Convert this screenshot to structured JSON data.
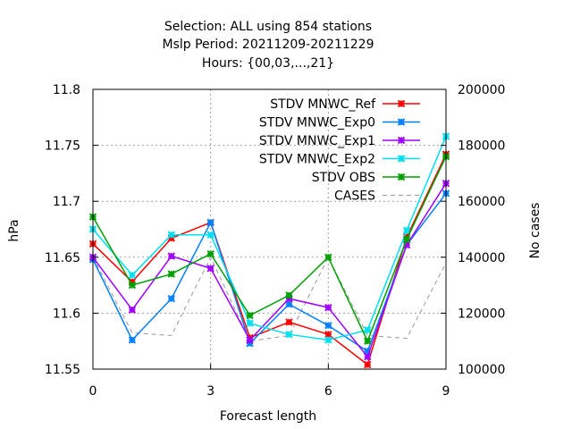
{
  "chart_data": {
    "type": "line",
    "title_lines": [
      "Selection: ALL using   854 stations",
      "Mslp   Period: 20211209-20211229",
      "Hours: {00,03,...,21}"
    ],
    "xlabel": "Forecast length",
    "ylabel": "hPa",
    "y2label": "No cases",
    "xlim": [
      0,
      9
    ],
    "ylim": [
      11.55,
      11.8
    ],
    "y2lim": [
      100000,
      200000
    ],
    "x_ticks": [
      0,
      3,
      6,
      9
    ],
    "x_tick_labels": [
      "0",
      "3",
      "6",
      "9"
    ],
    "y_ticks": [
      11.55,
      11.6,
      11.65,
      11.7,
      11.75,
      11.8
    ],
    "y_tick_labels": [
      "11.55",
      "11.6",
      "11.65",
      "11.7",
      "11.75",
      "11.8"
    ],
    "y2_ticks": [
      100000,
      120000,
      140000,
      160000,
      180000,
      200000
    ],
    "y2_tick_labels": [
      "100000",
      "120000",
      "140000",
      "160000",
      "180000",
      "200000"
    ],
    "grid": true,
    "legend_position": "top-right",
    "x": [
      0,
      1,
      2,
      3,
      4,
      5,
      6,
      7,
      8,
      9
    ],
    "series": [
      {
        "name": "STDV MNWC_Ref",
        "color": "#ff0000",
        "axis": "y",
        "values": [
          11.662,
          11.628,
          11.667,
          11.681,
          11.578,
          11.592,
          11.581,
          11.554,
          11.668,
          11.742
        ]
      },
      {
        "name": "STDV MNWC_Exp0",
        "color": "#0080ff",
        "axis": "y",
        "values": [
          11.648,
          11.576,
          11.613,
          11.681,
          11.573,
          11.608,
          11.589,
          11.566,
          11.661,
          11.707
        ]
      },
      {
        "name": "STDV MNWC_Exp1",
        "color": "#a000ff",
        "axis": "y",
        "values": [
          11.65,
          11.603,
          11.651,
          11.64,
          11.576,
          11.613,
          11.605,
          11.561,
          11.661,
          11.716
        ]
      },
      {
        "name": "STDV MNWC_Exp2",
        "color": "#00e0f0",
        "axis": "y",
        "values": [
          11.675,
          11.634,
          11.67,
          11.67,
          11.591,
          11.581,
          11.576,
          11.585,
          11.674,
          11.758
        ]
      },
      {
        "name": "STDV OBS",
        "color": "#00a000",
        "axis": "y",
        "values": [
          11.686,
          11.625,
          11.635,
          11.653,
          11.598,
          11.616,
          11.65,
          11.575,
          11.666,
          11.74
        ]
      },
      {
        "name": "CASES",
        "color": "#999999",
        "axis": "y2",
        "dashed": true,
        "values": [
          140000,
          113000,
          112000,
          140000,
          110000,
          112000,
          140000,
          112000,
          111000,
          138000
        ]
      }
    ]
  }
}
